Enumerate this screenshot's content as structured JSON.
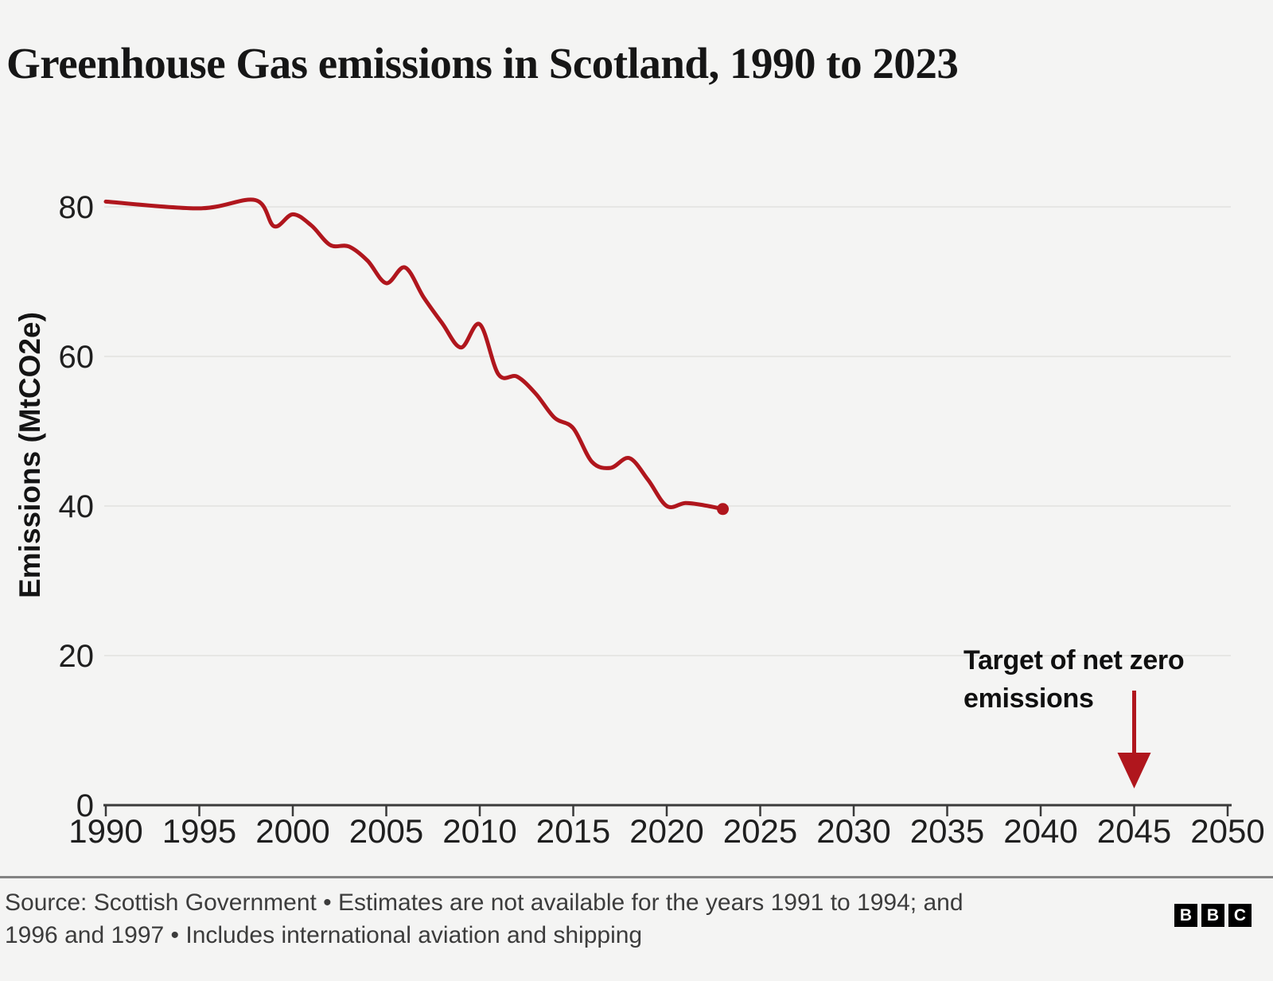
{
  "chart_data": {
    "type": "line",
    "title": "Greenhouse Gas emissions in Scotland, 1990 to 2023",
    "ylabel": "Emissions (MtCO2e)",
    "xlabel": "",
    "x_ticks": [
      1990,
      1995,
      2000,
      2005,
      2010,
      2015,
      2020,
      2025,
      2030,
      2035,
      2040,
      2045,
      2050
    ],
    "y_ticks": [
      0,
      20,
      40,
      60,
      80
    ],
    "xlim": [
      1990,
      2050
    ],
    "ylim": [
      0,
      80
    ],
    "grid": "horizontal",
    "legend": "none",
    "series": [
      {
        "name": "Greenhouse gas emissions",
        "years": [
          1990,
          1991,
          1992,
          1993,
          1994,
          1995,
          1996,
          1997,
          1998,
          1999,
          2000,
          2001,
          2002,
          2003,
          2004,
          2005,
          2006,
          2007,
          2008,
          2009,
          2010,
          2011,
          2012,
          2013,
          2014,
          2015,
          2016,
          2017,
          2018,
          2019,
          2020,
          2021,
          2022,
          2023
        ],
        "values": [
          80.7,
          null,
          null,
          null,
          null,
          79.8,
          null,
          null,
          80.9,
          77.4,
          79.0,
          77.5,
          74.9,
          74.7,
          72.8,
          69.8,
          71.9,
          67.9,
          64.4,
          61.2,
          64.3,
          57.6,
          57.3,
          55.0,
          51.8,
          50.4,
          45.9,
          45.1,
          46.4,
          43.5,
          40.0,
          40.4,
          40.1,
          39.6
        ]
      }
    ],
    "missing_years": "1991 to 1994; and 1996 and 1997",
    "end_point": {
      "year": 2023,
      "value": 39.6
    },
    "annotation": {
      "text": "Target of net zero emissions",
      "arrow_year": 2045
    },
    "colors": {
      "line": "#b0161d",
      "arrow": "#b0161d",
      "grid": "#e6e6e4",
      "axis": "#3a3a3a",
      "tick_label": "#1f1f1f",
      "background": "#f4f4f3"
    }
  },
  "footer": {
    "source_note": "Source: Scottish Government • Estimates are not available for the years 1991 to 1994; and 1996 and 1997 • Includes international aviation and shipping",
    "logo": [
      "B",
      "B",
      "C"
    ]
  }
}
